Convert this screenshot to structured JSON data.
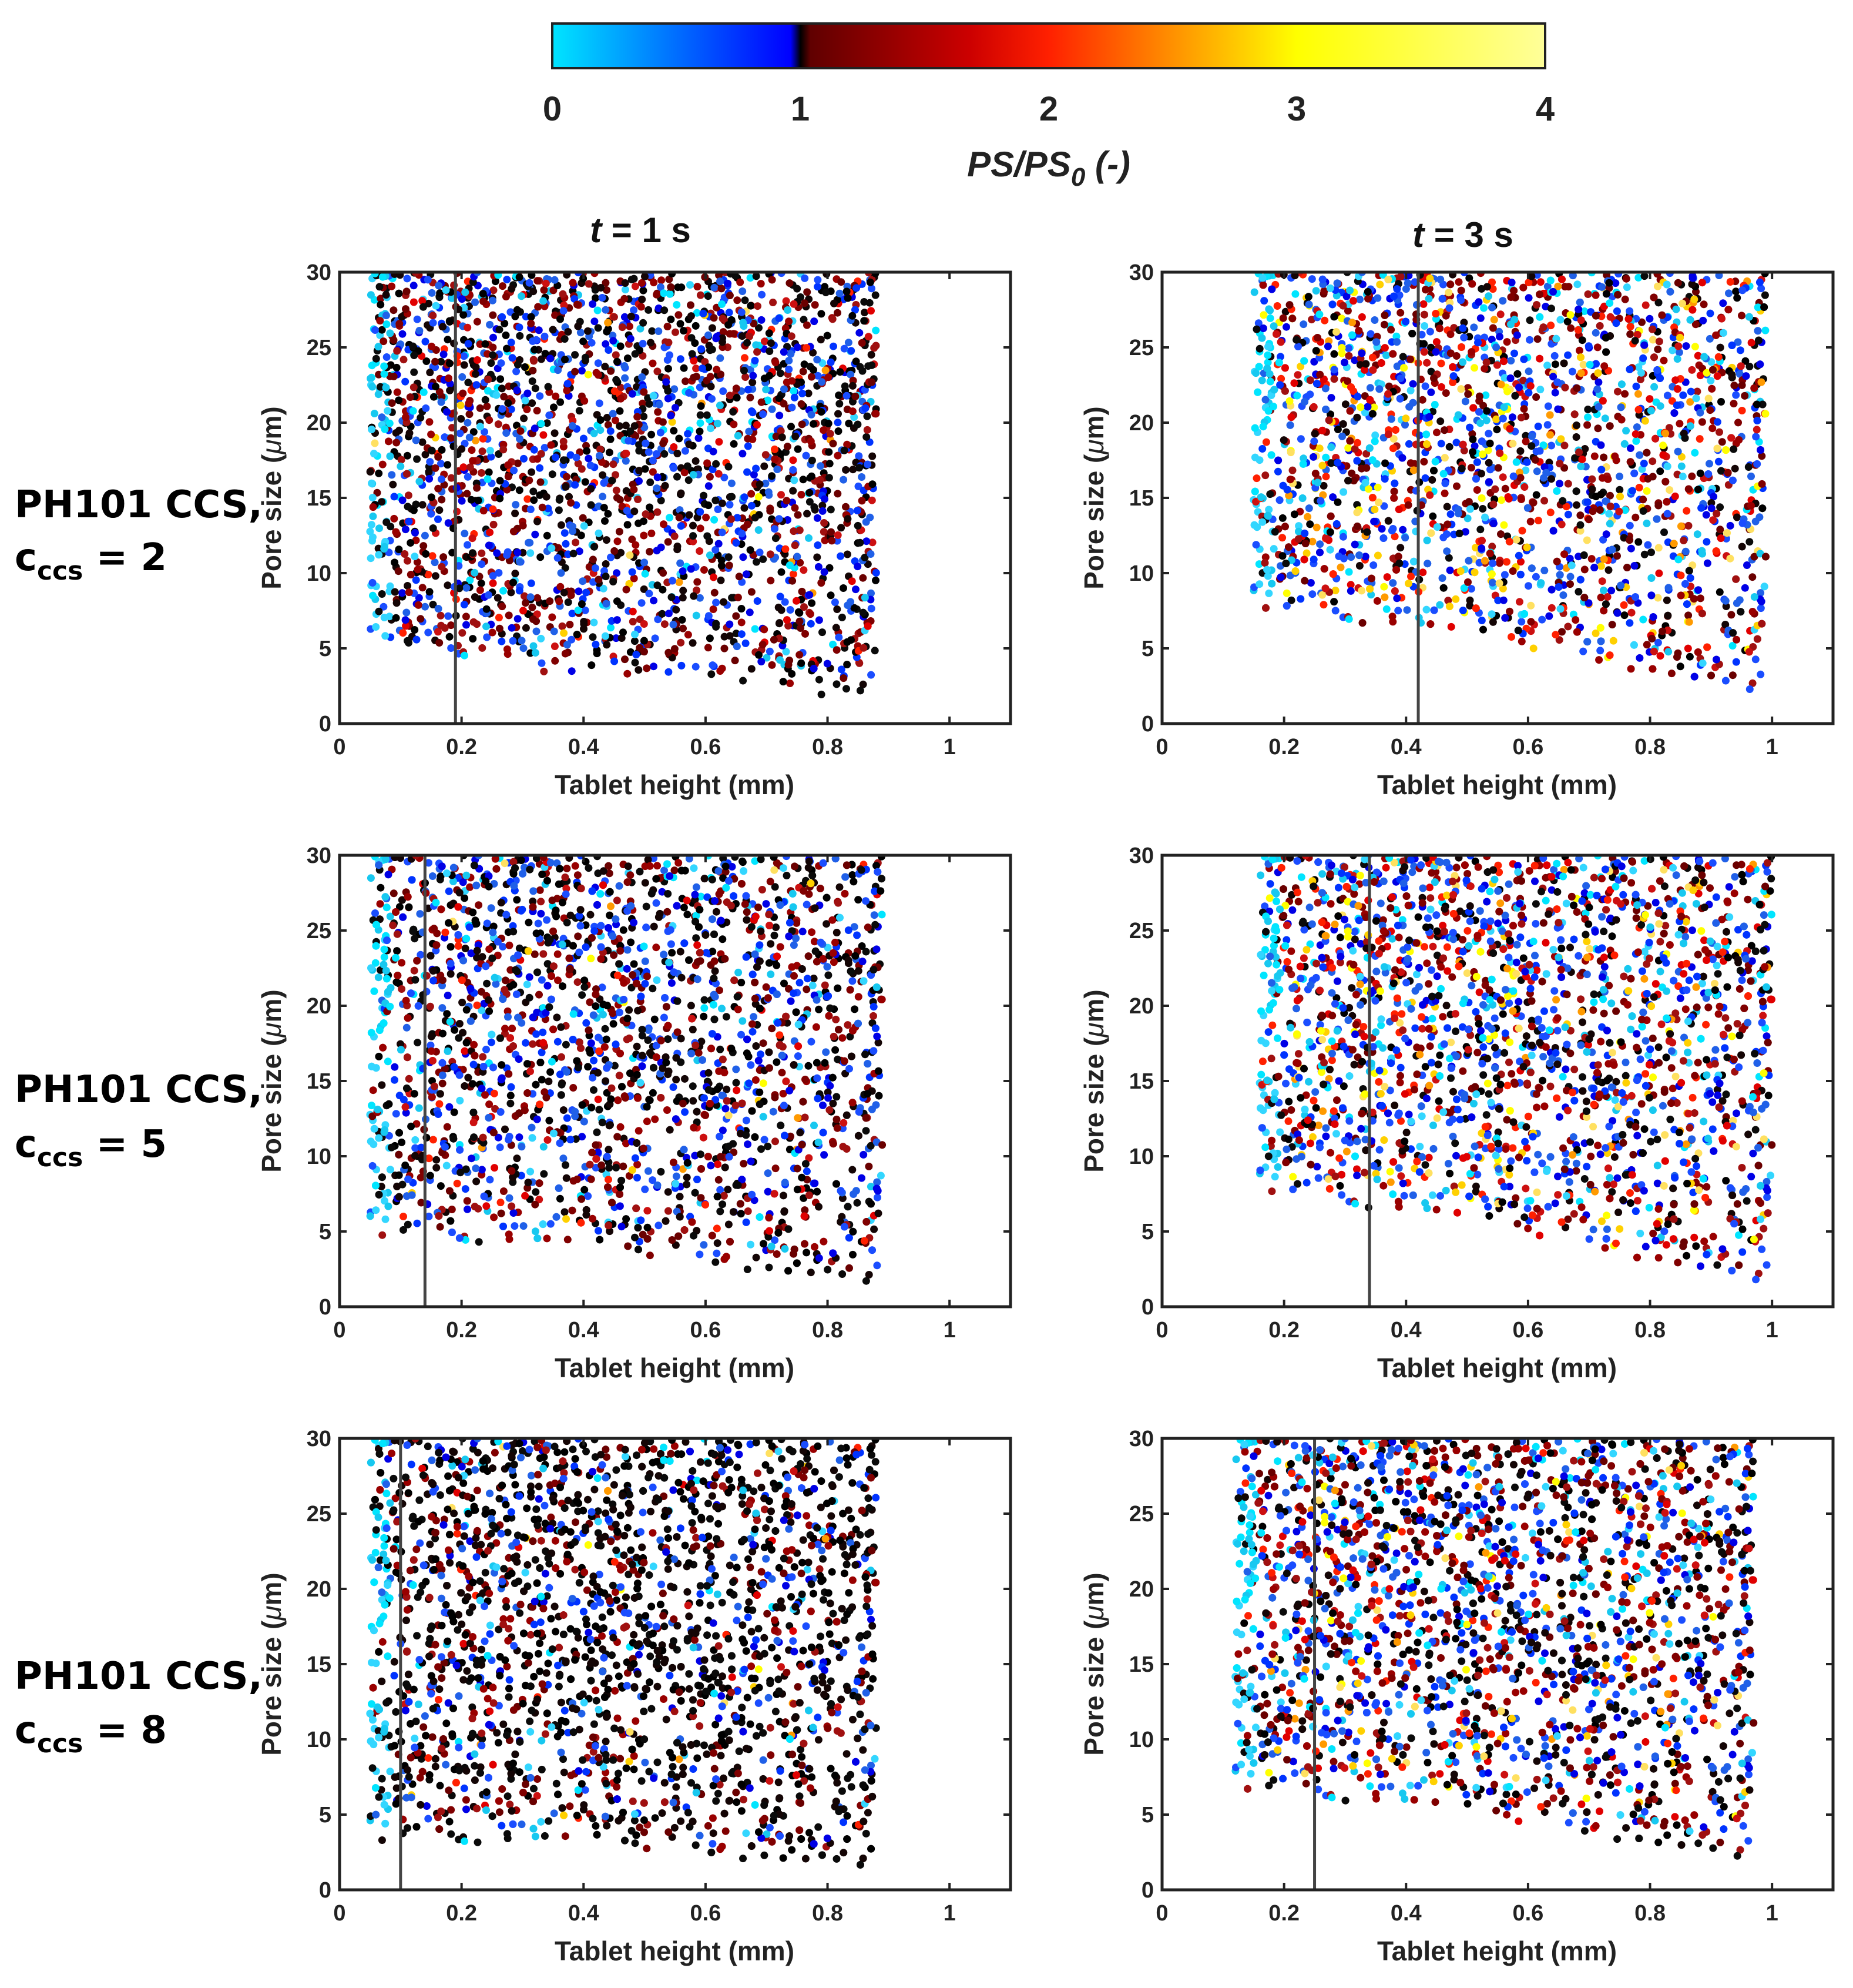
{
  "colorbar": {
    "ticks": [
      "0",
      "1",
      "2",
      "3",
      "4"
    ],
    "range": [
      0,
      4
    ],
    "label_main": "PS/PS",
    "label_sub": "0",
    "label_tail": " (-)",
    "colors": {
      "low": "#00e5ff",
      "mid_low": "#0000ff",
      "black": "#000000",
      "dark_red": "#800000",
      "red": "#ff0000",
      "orange": "#ff8000",
      "yellow": "#ffff00",
      "light_yellow": "#ffff99"
    }
  },
  "columns": [
    {
      "t": "t",
      "rest": " = 1 s"
    },
    {
      "t": "t",
      "rest": " = 3 s"
    }
  ],
  "rows": [
    {
      "line1": "PH101 CCS,",
      "c": "c",
      "sub": "ccs",
      "value": " = 2"
    },
    {
      "line1": "PH101 CCS,",
      "c": "c",
      "sub": "ccs",
      "value": " = 5"
    },
    {
      "line1": "PH101 CCS,",
      "c": "c",
      "sub": "ccs",
      "value": " = 8"
    }
  ],
  "axes": {
    "xlabel": "Tablet height (mm)",
    "ylabel_main": "Pore size (",
    "ylabel_mu": "μ",
    "ylabel_tail": "m)",
    "xticks": [
      "0",
      "0.2",
      "0.4",
      "0.6",
      "0.8",
      "1"
    ],
    "yticks": [
      "0",
      "5",
      "10",
      "15",
      "20",
      "25",
      "30"
    ]
  },
  "chart_data": [
    {
      "type": "scatter",
      "panel": "t = 1 s, c_ccs = 2",
      "xlabel": "Tablet height (mm)",
      "ylabel": "Pore size (μm)",
      "xlim": [
        0,
        1.1
      ],
      "ylim": [
        0,
        30
      ],
      "x_range": [
        0.05,
        0.88
      ],
      "y_floor_left": 5,
      "y_floor_right": 2.5,
      "front_line_x": 0.19,
      "color_mix": {
        "cyan": 0.06,
        "blue": 0.28,
        "black": 0.34,
        "darkred": 0.26,
        "red": 0.05,
        "yellow": 0.01
      },
      "colorbar": "PS/PS0 (-)"
    },
    {
      "type": "scatter",
      "panel": "t = 3 s, c_ccs = 2",
      "xlabel": "Tablet height (mm)",
      "ylabel": "Pore size (μm)",
      "xlim": [
        0,
        1.1
      ],
      "ylim": [
        0,
        30
      ],
      "x_range": [
        0.15,
        0.99
      ],
      "y_floor_left": 8,
      "y_floor_right": 2.5,
      "front_line_x": 0.42,
      "color_mix": {
        "cyan": 0.12,
        "blue": 0.3,
        "black": 0.14,
        "darkred": 0.22,
        "red": 0.12,
        "yellow": 0.1
      },
      "colorbar": "PS/PS0 (-)"
    },
    {
      "type": "scatter",
      "panel": "t = 1 s, c_ccs = 5",
      "xlabel": "Tablet height (mm)",
      "ylabel": "Pore size (μm)",
      "xlim": [
        0,
        1.1
      ],
      "ylim": [
        0,
        30
      ],
      "x_range": [
        0.05,
        0.89
      ],
      "y_floor_left": 5,
      "y_floor_right": 2,
      "front_line_x": 0.14,
      "color_mix": {
        "cyan": 0.06,
        "blue": 0.28,
        "black": 0.36,
        "darkred": 0.25,
        "red": 0.04,
        "yellow": 0.01
      },
      "colorbar": "PS/PS0 (-)"
    },
    {
      "type": "scatter",
      "panel": "t = 3 s, c_ccs = 5",
      "xlabel": "Tablet height (mm)",
      "ylabel": "Pore size (μm)",
      "xlim": [
        0,
        1.1
      ],
      "ylim": [
        0,
        30
      ],
      "x_range": [
        0.16,
        1.0
      ],
      "y_floor_left": 8,
      "y_floor_right": 2,
      "front_line_x": 0.34,
      "color_mix": {
        "cyan": 0.12,
        "blue": 0.3,
        "black": 0.16,
        "darkred": 0.22,
        "red": 0.11,
        "yellow": 0.09
      },
      "colorbar": "PS/PS0 (-)"
    },
    {
      "type": "scatter",
      "panel": "t = 1 s, c_ccs = 8",
      "xlabel": "Tablet height (mm)",
      "ylabel": "Pore size (μm)",
      "xlim": [
        0,
        1.1
      ],
      "ylim": [
        0,
        30
      ],
      "x_range": [
        0.05,
        0.88
      ],
      "y_floor_left": 3.5,
      "y_floor_right": 2,
      "front_line_x": 0.1,
      "color_mix": {
        "cyan": 0.04,
        "blue": 0.16,
        "black": 0.6,
        "darkred": 0.17,
        "red": 0.02,
        "yellow": 0.01
      },
      "colorbar": "PS/PS0 (-)"
    },
    {
      "type": "scatter",
      "panel": "t = 3 s, c_ccs = 8",
      "xlabel": "Tablet height (mm)",
      "ylabel": "Pore size (μm)",
      "xlim": [
        0,
        1.1
      ],
      "ylim": [
        0,
        30
      ],
      "x_range": [
        0.12,
        0.97
      ],
      "y_floor_left": 7,
      "y_floor_right": 2.5,
      "front_line_x": 0.25,
      "color_mix": {
        "cyan": 0.1,
        "blue": 0.26,
        "black": 0.26,
        "darkred": 0.24,
        "red": 0.08,
        "yellow": 0.06
      },
      "colorbar": "PS/PS0 (-)"
    }
  ]
}
